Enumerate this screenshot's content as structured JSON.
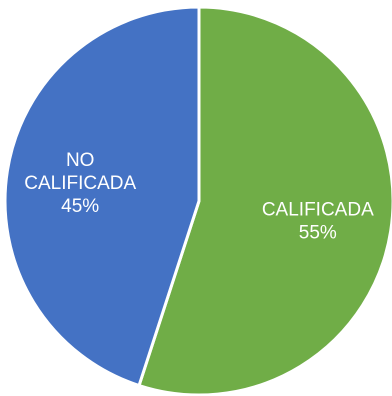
{
  "chart_data": {
    "type": "pie",
    "title": "",
    "legend": "none",
    "slices": [
      {
        "category_lines": [
          "CALIFICADA"
        ],
        "value": 55,
        "percent_label": "55%",
        "color": "#70ad47"
      },
      {
        "category_lines": [
          "NO",
          "CALIFICADA"
        ],
        "value": 45,
        "percent_label": "45%",
        "color": "#4472c4"
      }
    ],
    "slice_border_color": "#ffffff"
  }
}
